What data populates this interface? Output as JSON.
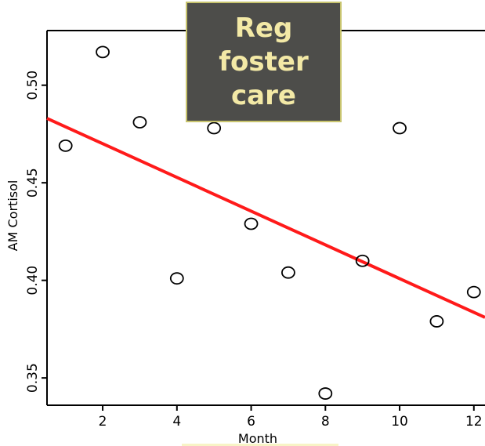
{
  "colors": {
    "background": "#ffffff",
    "axis": "#000000",
    "fit_line": "#ff1a1a",
    "marker_stroke": "#000000",
    "title_box_fill": "#4d4d4a",
    "title_box_border": "#c8c46e",
    "title_text": "#f3e9a6"
  },
  "title_box": {
    "text": "Reg\nfoster\ncare"
  },
  "chart_data": {
    "type": "scatter",
    "title": "Reg foster care",
    "xlabel": "Month",
    "ylabel": "AM Cortisol",
    "xlim": [
      0.5,
      12.3
    ],
    "ylim": [
      0.336,
      0.528
    ],
    "x_ticks": [
      2,
      4,
      6,
      8,
      10,
      12
    ],
    "x_tick_labels": [
      "2",
      "4",
      "6",
      "8",
      "10",
      "12"
    ],
    "y_ticks": [
      0.35,
      0.4,
      0.45,
      0.5
    ],
    "y_tick_labels": [
      "0.35",
      "0.40",
      "0.45",
      "0.50"
    ],
    "points": [
      {
        "x": 1,
        "y": 0.469
      },
      {
        "x": 2,
        "y": 0.517
      },
      {
        "x": 3,
        "y": 0.481
      },
      {
        "x": 4,
        "y": 0.401
      },
      {
        "x": 5,
        "y": 0.478
      },
      {
        "x": 6,
        "y": 0.429
      },
      {
        "x": 7,
        "y": 0.404
      },
      {
        "x": 8,
        "y": 0.342
      },
      {
        "x": 9,
        "y": 0.41
      },
      {
        "x": 10,
        "y": 0.478
      },
      {
        "x": 11,
        "y": 0.379
      },
      {
        "x": 12,
        "y": 0.394
      }
    ],
    "fit_line": {
      "x": [
        0.5,
        12.3
      ],
      "y": [
        0.483,
        0.381
      ]
    },
    "grid": false,
    "legend": "none"
  }
}
